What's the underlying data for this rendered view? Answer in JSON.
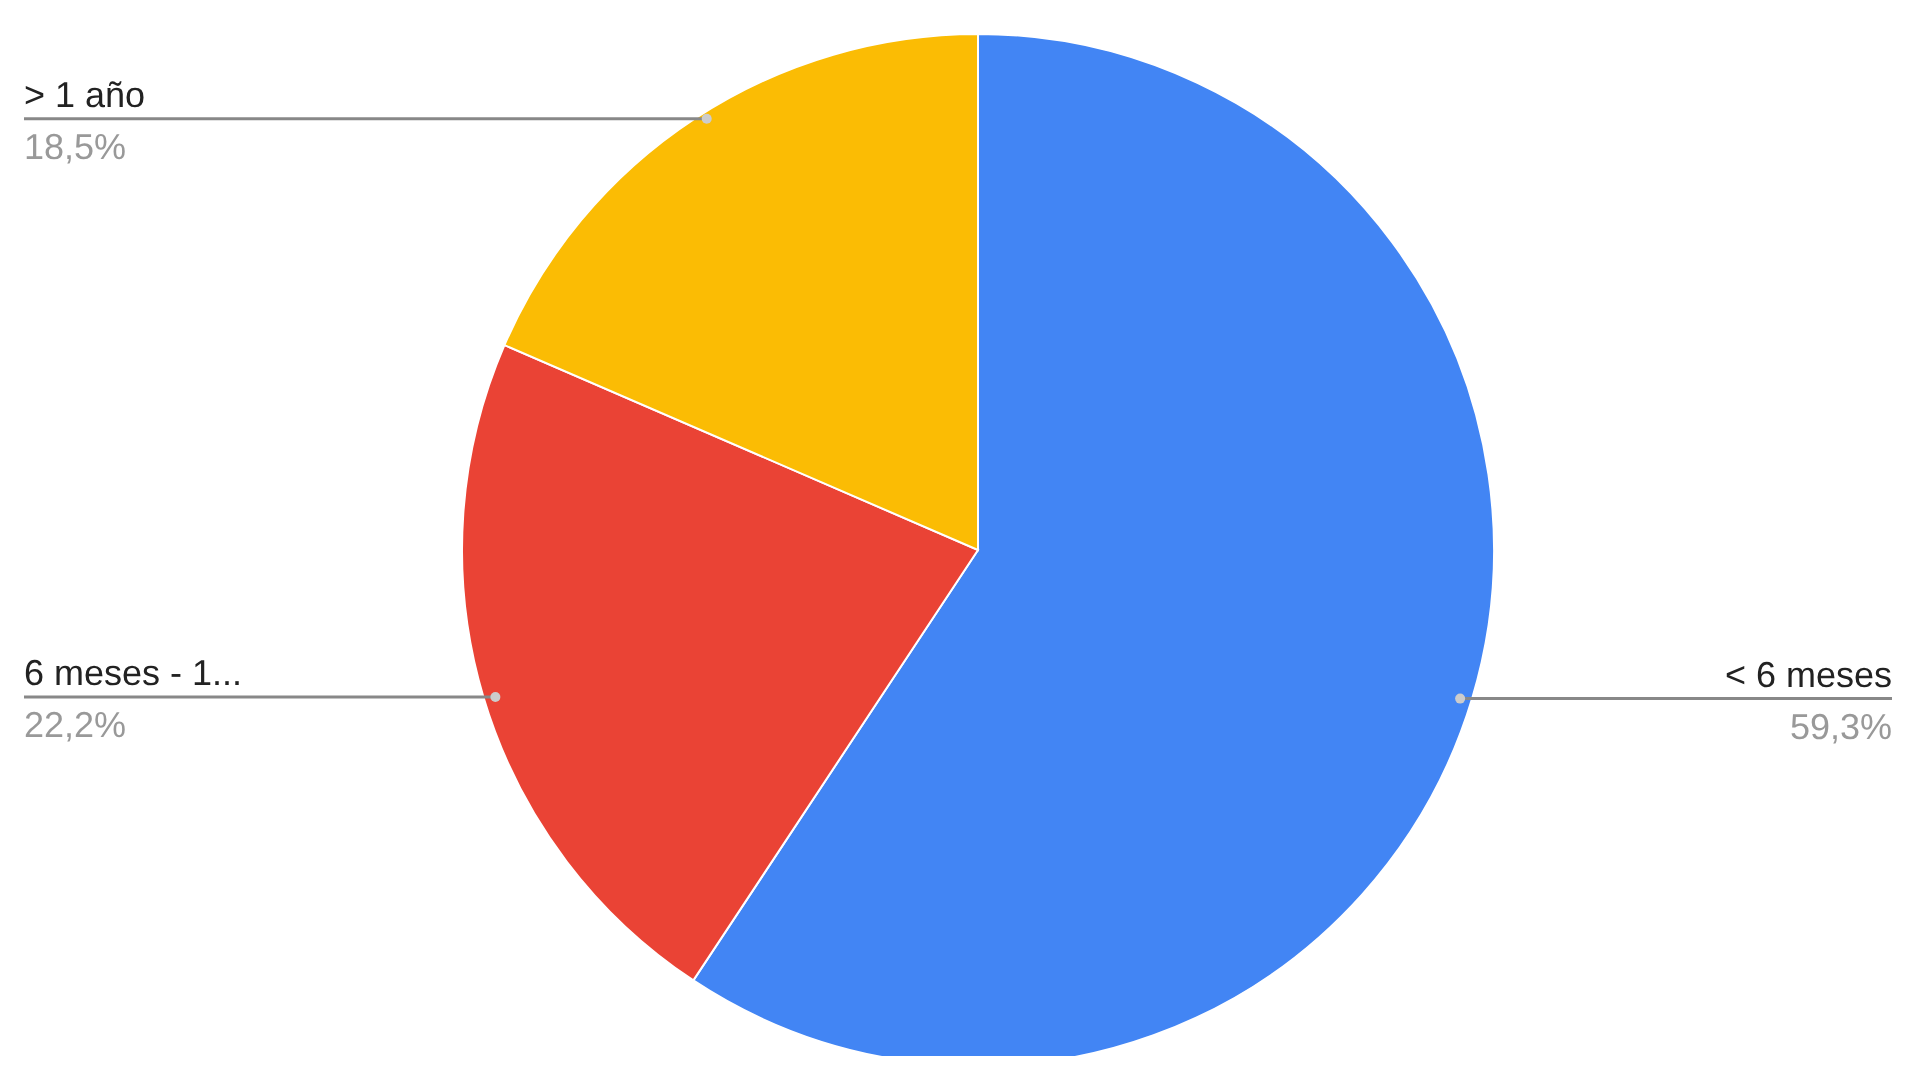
{
  "chart_data": {
    "type": "pie",
    "categories": [
      "< 6 meses",
      "6 meses - 1...",
      "> 1 año"
    ],
    "values": [
      59.3,
      22.2,
      18.5
    ],
    "colors": [
      "#4285f4",
      "#ea4335",
      "#fbbc04"
    ],
    "value_labels": [
      "59,3%",
      "22,2%",
      "18,5%"
    ]
  }
}
